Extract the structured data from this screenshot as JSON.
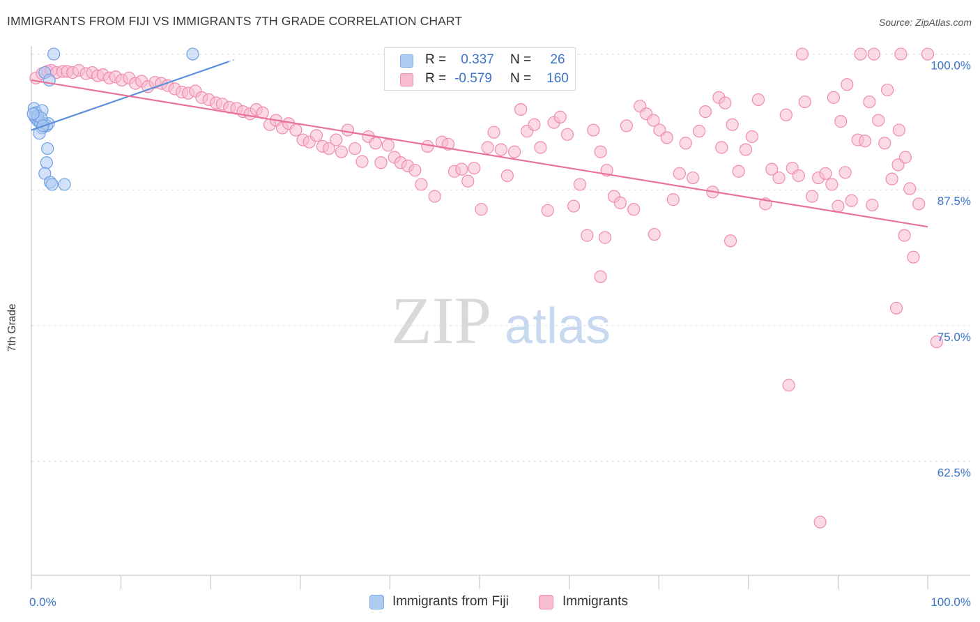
{
  "title": "IMMIGRANTS FROM FIJI VS IMMIGRANTS 7TH GRADE CORRELATION CHART",
  "source": "Source: ZipAtlas.com",
  "watermark": {
    "zip": "ZIP",
    "atlas": "atlas"
  },
  "legend_top": [
    {
      "r_label": "R =",
      "r_value": "0.337",
      "n_label": "N =",
      "n_value": "26",
      "color": "#7aaae8",
      "fill": "#aecbf2"
    },
    {
      "r_label": "R =",
      "r_value": "-0.579",
      "n_label": "N =",
      "n_value": "160",
      "color": "#f08bb0",
      "fill": "#f7bcd0"
    }
  ],
  "legend_bottom": [
    {
      "label": "Immigrants from Fiji",
      "fill": "#aecbf2",
      "stroke": "#7aaae8"
    },
    {
      "label": "Immigrants",
      "fill": "#f7bcd0",
      "stroke": "#f08bb0"
    }
  ],
  "chart_data": {
    "type": "scatter",
    "ylabel": "7th Grade",
    "x_tick_labels": [
      "0.0%",
      "100.0%"
    ],
    "y_tick_labels": [
      "100.0%",
      "87.5%",
      "75.0%",
      "62.5%"
    ],
    "y_ticks": [
      100.0,
      87.5,
      75.0,
      62.5
    ],
    "xlim": [
      0,
      100
    ],
    "ylim": [
      52.0,
      101.0
    ],
    "grid": true,
    "series": [
      {
        "name": "Immigrants from Fiji",
        "color": "#5b8fdb",
        "fill": "#aecbf2",
        "stroke": "#6f9fe4",
        "trend": {
          "x0": 0.0,
          "y0": 93.0,
          "x1": 22.0,
          "y1": 99.3,
          "dash_to_x": 22.0
        },
        "points": [
          [
            2.5,
            100.0
          ],
          [
            18.0,
            100.0
          ],
          [
            1.5,
            98.3
          ],
          [
            2.0,
            97.6
          ],
          [
            0.3,
            95.0
          ],
          [
            0.5,
            94.6
          ],
          [
            1.2,
            94.8
          ],
          [
            0.4,
            94.2
          ],
          [
            0.6,
            94.0
          ],
          [
            0.8,
            93.8
          ],
          [
            1.0,
            93.7
          ],
          [
            1.4,
            93.6
          ],
          [
            1.7,
            93.4
          ],
          [
            1.9,
            93.6
          ],
          [
            1.2,
            93.2
          ],
          [
            0.9,
            92.7
          ],
          [
            1.8,
            91.3
          ],
          [
            1.7,
            90.0
          ],
          [
            1.5,
            89.0
          ],
          [
            2.1,
            88.2
          ],
          [
            2.3,
            88.0
          ],
          [
            3.7,
            88.0
          ],
          [
            0.7,
            94.3
          ],
          [
            1.1,
            94.1
          ],
          [
            1.3,
            93.4
          ],
          [
            0.2,
            94.5
          ]
        ]
      },
      {
        "name": "Immigrants",
        "color": "#e8729c",
        "fill": "#f7bcd0",
        "stroke": "#f08bb0",
        "trend": {
          "x0": 0.0,
          "y0": 97.6,
          "x1": 100.0,
          "y1": 84.1
        },
        "points": [
          [
            0.5,
            97.8
          ],
          [
            1.2,
            98.2
          ],
          [
            1.8,
            98.4
          ],
          [
            2.2,
            98.5
          ],
          [
            2.8,
            98.3
          ],
          [
            3.5,
            98.4
          ],
          [
            4.0,
            98.4
          ],
          [
            4.6,
            98.3
          ],
          [
            5.3,
            98.5
          ],
          [
            6.1,
            98.2
          ],
          [
            6.8,
            98.3
          ],
          [
            7.4,
            98.0
          ],
          [
            8.0,
            98.1
          ],
          [
            8.7,
            97.8
          ],
          [
            9.4,
            97.9
          ],
          [
            10.1,
            97.6
          ],
          [
            10.9,
            97.8
          ],
          [
            11.6,
            97.3
          ],
          [
            12.3,
            97.5
          ],
          [
            13.0,
            97.0
          ],
          [
            13.8,
            97.4
          ],
          [
            14.5,
            97.3
          ],
          [
            15.2,
            97.1
          ],
          [
            16.0,
            96.8
          ],
          [
            16.8,
            96.5
          ],
          [
            17.5,
            96.4
          ],
          [
            18.3,
            96.6
          ],
          [
            19.0,
            96.0
          ],
          [
            19.8,
            95.8
          ],
          [
            20.6,
            95.5
          ],
          [
            21.3,
            95.4
          ],
          [
            22.1,
            95.1
          ],
          [
            22.9,
            95.0
          ],
          [
            23.6,
            94.7
          ],
          [
            24.4,
            94.5
          ],
          [
            25.1,
            94.9
          ],
          [
            25.8,
            94.6
          ],
          [
            26.6,
            93.5
          ],
          [
            27.3,
            93.9
          ],
          [
            28.0,
            93.2
          ],
          [
            28.7,
            93.6
          ],
          [
            29.5,
            93.0
          ],
          [
            30.3,
            92.1
          ],
          [
            31.0,
            91.9
          ],
          [
            31.8,
            92.5
          ],
          [
            32.5,
            91.5
          ],
          [
            33.2,
            91.3
          ],
          [
            34.0,
            92.1
          ],
          [
            34.6,
            91.0
          ],
          [
            35.3,
            93.0
          ],
          [
            36.1,
            91.3
          ],
          [
            36.9,
            90.1
          ],
          [
            37.6,
            92.4
          ],
          [
            38.4,
            91.8
          ],
          [
            39.0,
            90.0
          ],
          [
            39.8,
            91.6
          ],
          [
            40.5,
            90.5
          ],
          [
            41.2,
            90.0
          ],
          [
            42.0,
            89.7
          ],
          [
            42.8,
            89.3
          ],
          [
            43.5,
            88.0
          ],
          [
            44.2,
            91.5
          ],
          [
            45.0,
            86.9
          ],
          [
            45.8,
            91.9
          ],
          [
            46.5,
            91.7
          ],
          [
            47.2,
            89.2
          ],
          [
            48.0,
            89.4
          ],
          [
            48.7,
            88.3
          ],
          [
            49.4,
            89.5
          ],
          [
            50.2,
            85.7
          ],
          [
            50.9,
            91.4
          ],
          [
            51.6,
            92.8
          ],
          [
            52.4,
            91.2
          ],
          [
            53.1,
            88.8
          ],
          [
            53.9,
            91.0
          ],
          [
            54.6,
            94.9
          ],
          [
            55.3,
            92.9
          ],
          [
            56.1,
            93.5
          ],
          [
            56.8,
            91.4
          ],
          [
            57.6,
            85.6
          ],
          [
            58.3,
            93.7
          ],
          [
            59.0,
            94.2
          ],
          [
            59.8,
            92.6
          ],
          [
            60.5,
            86.0
          ],
          [
            61.2,
            88.0
          ],
          [
            62.0,
            83.3
          ],
          [
            62.7,
            93.0
          ],
          [
            63.5,
            91.0
          ],
          [
            64.2,
            89.3
          ],
          [
            65.0,
            86.9
          ],
          [
            65.7,
            86.3
          ],
          [
            66.4,
            93.4
          ],
          [
            67.2,
            85.7
          ],
          [
            67.9,
            95.2
          ],
          [
            68.6,
            94.5
          ],
          [
            69.4,
            93.9
          ],
          [
            70.1,
            93.0
          ],
          [
            70.9,
            92.3
          ],
          [
            71.6,
            86.6
          ],
          [
            72.3,
            89.0
          ],
          [
            73.0,
            91.8
          ],
          [
            73.8,
            88.6
          ],
          [
            74.5,
            92.9
          ],
          [
            75.2,
            94.7
          ],
          [
            76.0,
            87.3
          ],
          [
            76.7,
            96.0
          ],
          [
            77.4,
            95.5
          ],
          [
            78.2,
            93.5
          ],
          [
            78.9,
            89.2
          ],
          [
            79.7,
            91.2
          ],
          [
            80.4,
            92.4
          ],
          [
            81.1,
            95.8
          ],
          [
            81.9,
            86.2
          ],
          [
            82.6,
            89.4
          ],
          [
            83.4,
            88.6
          ],
          [
            84.2,
            94.4
          ],
          [
            84.9,
            89.5
          ],
          [
            85.6,
            88.8
          ],
          [
            86.3,
            95.6
          ],
          [
            87.1,
            86.9
          ],
          [
            87.8,
            88.6
          ],
          [
            88.6,
            89.0
          ],
          [
            89.3,
            88.0
          ],
          [
            90.0,
            86.0
          ],
          [
            90.8,
            89.1
          ],
          [
            91.5,
            86.5
          ],
          [
            92.2,
            92.1
          ],
          [
            93.0,
            92.0
          ],
          [
            93.8,
            86.1
          ],
          [
            94.5,
            93.9
          ],
          [
            95.2,
            91.8
          ],
          [
            96.0,
            88.5
          ],
          [
            96.7,
            89.8
          ],
          [
            97.4,
            83.3
          ],
          [
            98.0,
            87.6
          ],
          [
            63.5,
            79.5
          ],
          [
            69.5,
            83.4
          ],
          [
            77.0,
            91.4
          ],
          [
            64.0,
            83.1
          ],
          [
            84.5,
            69.5
          ],
          [
            89.5,
            96.0
          ],
          [
            90.3,
            93.8
          ],
          [
            93.5,
            95.6
          ],
          [
            95.5,
            96.7
          ],
          [
            96.8,
            93.0
          ],
          [
            97.5,
            90.5
          ],
          [
            98.4,
            81.3
          ],
          [
            96.5,
            76.6
          ],
          [
            99.0,
            86.2
          ],
          [
            101.0,
            73.5
          ],
          [
            88.0,
            56.9
          ],
          [
            78.0,
            82.8
          ],
          [
            86.0,
            100.0
          ],
          [
            94.0,
            100.0
          ],
          [
            97.0,
            100.0
          ],
          [
            100.0,
            100.0
          ],
          [
            92.5,
            100.0
          ],
          [
            91.0,
            97.2
          ]
        ]
      }
    ]
  }
}
